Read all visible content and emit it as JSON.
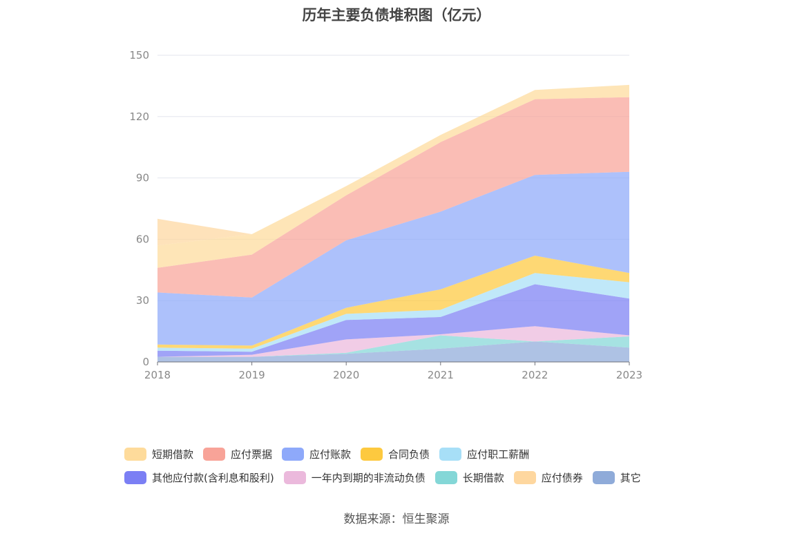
{
  "title": "历年主要负债堆积图（亿元）",
  "source": "数据来源：恒生聚源",
  "chart_data": {
    "type": "area",
    "stacked": true,
    "x": [
      "2018",
      "2019",
      "2020",
      "2021",
      "2022",
      "2023"
    ],
    "ylim": [
      0,
      150
    ],
    "yticks": [
      "0",
      "30",
      "60",
      "90",
      "120",
      "150"
    ],
    "grid": true,
    "legend_position": "bottom",
    "series": [
      {
        "name": "其它",
        "color": "#8fabd9",
        "values": [
          2.5,
          2.5,
          4.0,
          6.5,
          10.0,
          7.0
        ]
      },
      {
        "name": "长期借款",
        "color": "#84d7d7",
        "values": [
          0,
          0,
          0.5,
          6.5,
          0,
          5.5
        ]
      },
      {
        "name": "一年内到期的非流动负债",
        "color": "#ebb9dc",
        "values": [
          0,
          1.0,
          6.5,
          0.5,
          7.5,
          0.5
        ]
      },
      {
        "name": "其他应付款(含利息和股利)",
        "color": "#7b7ff4",
        "values": [
          3.0,
          1.5,
          9.5,
          8.5,
          20.5,
          18.0
        ]
      },
      {
        "name": "应付职工薪酬",
        "color": "#a7dff7",
        "values": [
          1.5,
          1.5,
          3.0,
          3.5,
          5.5,
          8.0
        ]
      },
      {
        "name": "合同负债",
        "color": "#fdc93f",
        "values": [
          1.5,
          1.5,
          3.0,
          10.0,
          8.5,
          4.5
        ]
      },
      {
        "name": "应付账款",
        "color": "#8ea9fa",
        "values": [
          25.5,
          23.5,
          33.0,
          38.0,
          39.5,
          49.5
        ]
      },
      {
        "name": "应付票据",
        "color": "#f8a398",
        "values": [
          12.0,
          21.0,
          22.0,
          34.0,
          37.0,
          36.5
        ]
      },
      {
        "name": "短期借款",
        "color": "#fedb9b",
        "values": [
          11.0,
          10.0,
          4.5,
          3.5,
          4.5,
          6.0
        ]
      },
      {
        "name": "应付债券",
        "color": "#fed79f",
        "values": [
          13.0,
          0,
          0,
          0,
          0,
          0
        ]
      }
    ],
    "legend_order": [
      "短期借款",
      "应付票据",
      "应付账款",
      "合同负债",
      "应付职工薪酬",
      "其他应付款(含利息和股利)",
      "一年内到期的非流动负债",
      "长期借款",
      "应付债券",
      "其它"
    ],
    "legend_rows": [
      5,
      5
    ]
  }
}
